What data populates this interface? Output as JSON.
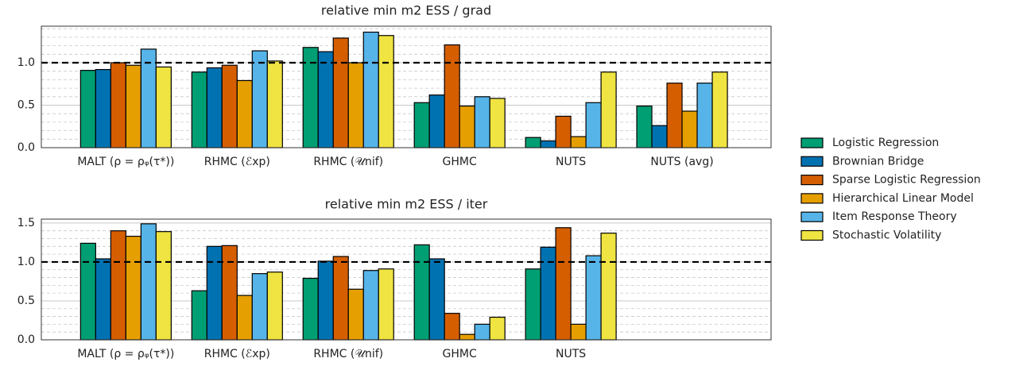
{
  "chart_data": [
    {
      "type": "bar",
      "title": "relative min m2 ESS / grad",
      "categories": [
        "MALT (ρ = ρᵩ(τ*))",
        "RHMC (ℰxp)",
        "RHMC (𝒰nif)",
        "GHMC",
        "NUTS",
        "NUTS (avg)"
      ],
      "series": [
        {
          "name": "Logistic Regression",
          "color": "#009E73",
          "values": [
            0.91,
            0.89,
            1.18,
            0.53,
            0.12,
            0.49
          ]
        },
        {
          "name": "Brownian Bridge",
          "color": "#0072B2",
          "values": [
            0.92,
            0.94,
            1.13,
            0.62,
            0.08,
            0.26
          ]
        },
        {
          "name": "Sparse Logistic Regression",
          "color": "#D55E00",
          "values": [
            1.0,
            0.97,
            1.29,
            1.21,
            0.37,
            0.76
          ]
        },
        {
          "name": "Hierarchical Linear Model",
          "color": "#E69F00",
          "values": [
            0.97,
            0.79,
            1.0,
            0.49,
            0.13,
            0.43
          ]
        },
        {
          "name": "Item Response Theory",
          "color": "#56B4E9",
          "values": [
            1.16,
            1.14,
            1.36,
            0.6,
            0.53,
            0.76
          ]
        },
        {
          "name": "Stochastic Volatility",
          "color": "#F0E442",
          "values": [
            0.95,
            1.02,
            1.32,
            0.58,
            0.89,
            0.89
          ]
        }
      ],
      "ylim": [
        0,
        1.43
      ],
      "yticks": [
        {
          "value": 0,
          "label": "0.0"
        },
        {
          "value": 0.5,
          "label": "0.5"
        },
        {
          "value": 1.0,
          "label": "1.0"
        }
      ],
      "yminorticks": [
        0.1,
        0.2,
        0.3,
        0.4,
        0.6,
        0.7,
        0.8,
        0.9,
        1.1,
        1.2,
        1.3,
        1.4
      ],
      "hline": 1.0,
      "grid": true
    },
    {
      "type": "bar",
      "title": "relative min m2 ESS / iter",
      "categories": [
        "MALT (ρ = ρᵩ(τ*))",
        "RHMC (ℰxp)",
        "RHMC (𝒰nif)",
        "GHMC",
        "NUTS"
      ],
      "series": [
        {
          "color": "#009E73",
          "values": [
            1.24,
            0.63,
            0.79,
            1.22,
            0.91
          ]
        },
        {
          "color": "#0072B2",
          "values": [
            1.04,
            1.2,
            1.01,
            1.04,
            1.19
          ]
        },
        {
          "color": "#D55E00",
          "values": [
            1.4,
            1.21,
            1.07,
            0.34,
            1.44
          ]
        },
        {
          "color": "#E69F00",
          "values": [
            1.33,
            0.57,
            0.65,
            0.07,
            0.2
          ]
        },
        {
          "color": "#56B4E9",
          "values": [
            1.49,
            0.85,
            0.89,
            0.2,
            1.08
          ]
        },
        {
          "color": "#F0E442",
          "values": [
            1.39,
            0.87,
            0.91,
            0.29,
            1.37
          ]
        }
      ],
      "ylim": [
        0,
        1.55
      ],
      "yticks": [
        {
          "value": 0,
          "label": "0.0"
        },
        {
          "value": 0.5,
          "label": "0.5"
        },
        {
          "value": 1.0,
          "label": "1.0"
        },
        {
          "value": 1.5,
          "label": "1.5"
        }
      ],
      "yminorticks": [
        0.1,
        0.2,
        0.3,
        0.4,
        0.6,
        0.7,
        0.8,
        0.9,
        1.1,
        1.2,
        1.3,
        1.4
      ],
      "hline": 1.0,
      "grid": true
    }
  ]
}
